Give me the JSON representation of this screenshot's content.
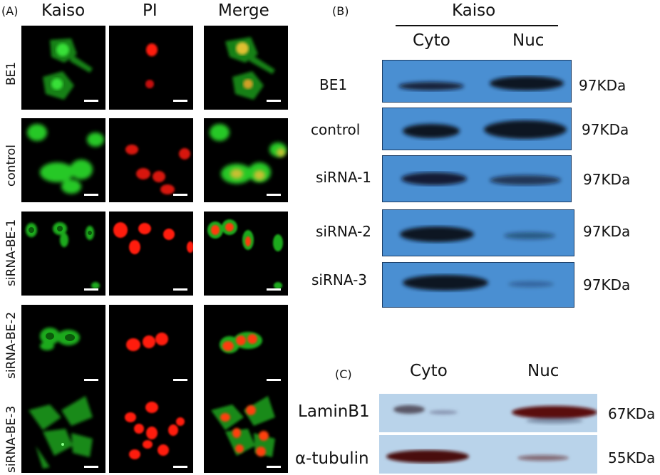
{
  "panel_a": {
    "label": "(A)",
    "columns": [
      "Kaiso",
      "PI",
      "Merge"
    ],
    "rows": [
      "BE1",
      "control",
      "siRNA-BE-1",
      "siRNA-BE-2",
      "siRNA-BE-3"
    ]
  },
  "panel_b": {
    "label": "(B)",
    "title": "Kaiso",
    "columns": [
      "Cyto",
      "Nuc"
    ],
    "rows": [
      {
        "name": "BE1",
        "size": "97KDa"
      },
      {
        "name": "control",
        "size": "97KDa"
      },
      {
        "name": "siRNA-1",
        "size": "97KDa"
      },
      {
        "name": "siRNA-2",
        "size": "97KDa"
      },
      {
        "name": "siRNA-3",
        "size": "97KDa"
      }
    ]
  },
  "panel_c": {
    "label": "(C)",
    "columns": [
      "Cyto",
      "Nuc"
    ],
    "rows": [
      {
        "name": "LaminB1",
        "size": "67KDa"
      },
      {
        "name": "α-tubulin",
        "size": "55KDa"
      }
    ]
  },
  "colors": {
    "kaiso_fluor": "#2ad12a",
    "pi_fluor": "#ff1a0a",
    "blot_bg": "#4a8fd2",
    "blot_bg_light": "#b9d3ea",
    "band": "#0b1222"
  }
}
